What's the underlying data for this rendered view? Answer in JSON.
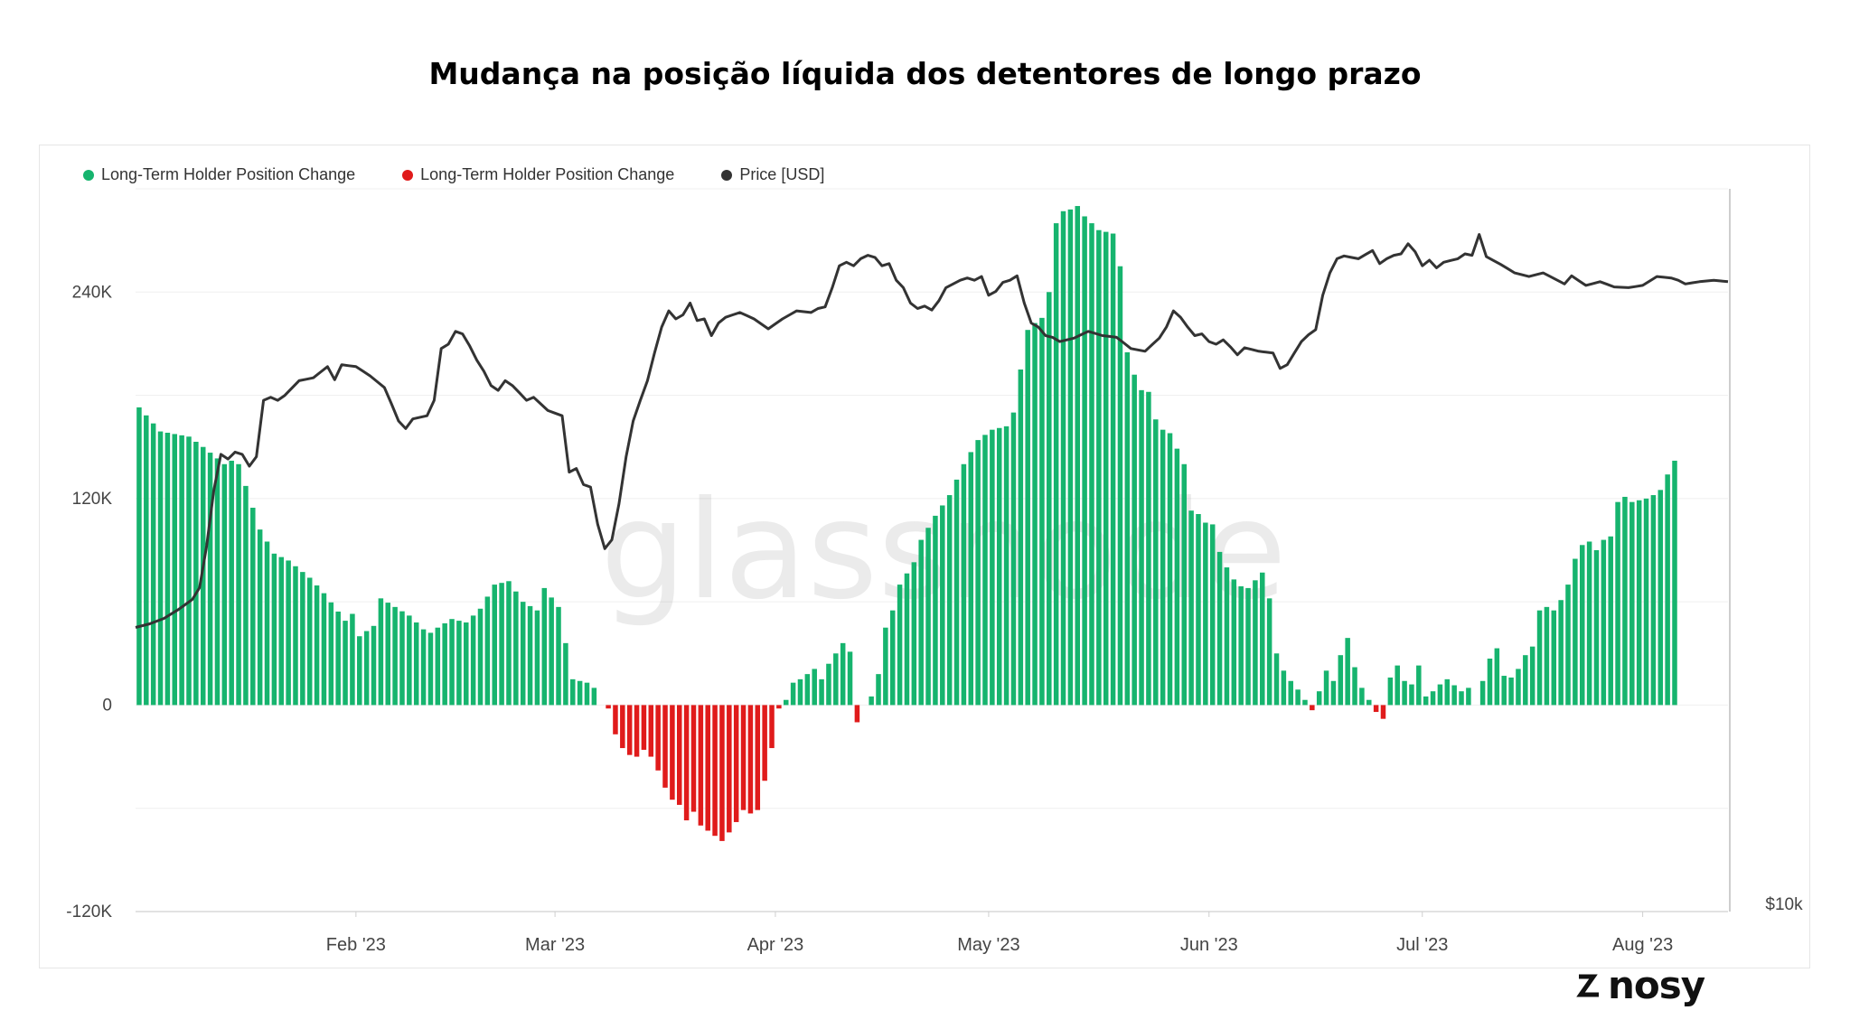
{
  "title": "Mudança na posição líquida dos detentores de longo prazo",
  "logo": {
    "text": "nosy",
    "icon": "nosy-logo-icon"
  },
  "watermark": "glassnode",
  "colors": {
    "positive": "#16b46e",
    "negative": "#e01b1b",
    "price": "#333333",
    "grid": "#efefef"
  },
  "chart_data": {
    "type": "bar",
    "title": "Mudança na posição líquida dos detentores de longo prazo",
    "legend": [
      {
        "label": "Long-Term Holder Position Change",
        "color": "#16b46e"
      },
      {
        "label": "Long-Term Holder Position Change",
        "color": "#e01b1b"
      },
      {
        "label": "Price [USD]",
        "color": "#333333"
      }
    ],
    "y_left": {
      "ticks": [
        240000,
        120000,
        0,
        -120000
      ],
      "labels": [
        "240K",
        "120K",
        "0",
        "-120K"
      ],
      "range": [
        -120000,
        300000
      ]
    },
    "y_right": {
      "labels": [
        "$10k"
      ],
      "scale": "log"
    },
    "x_axis": {
      "labels": [
        "Feb '23",
        "Mar '23",
        "Apr '23",
        "May '23",
        "Jun '23",
        "Jul '23",
        "Aug '23"
      ],
      "label_index": [
        31,
        59,
        90,
        120,
        151,
        181,
        212
      ],
      "start": "2023-01-01",
      "days": 224
    },
    "anchors": {
      "position_change": [
        [
          0,
          173000
        ],
        [
          3,
          159000
        ],
        [
          7,
          156000
        ],
        [
          9,
          150000
        ],
        [
          12,
          140000
        ],
        [
          13,
          142000
        ],
        [
          14,
          140000
        ],
        [
          17,
          102000
        ],
        [
          19,
          88000
        ],
        [
          21,
          84000
        ],
        [
          24,
          74000
        ],
        [
          26,
          65000
        ],
        [
          29,
          49000
        ],
        [
          30,
          53000
        ],
        [
          31,
          40000
        ],
        [
          33,
          46000
        ],
        [
          34,
          62000
        ],
        [
          36,
          57000
        ],
        [
          38,
          52000
        ],
        [
          40,
          44000
        ],
        [
          41,
          42000
        ],
        [
          42,
          45000
        ],
        [
          44,
          50000
        ],
        [
          46,
          48000
        ],
        [
          48,
          56000
        ],
        [
          50,
          70000
        ],
        [
          52,
          72000
        ],
        [
          54,
          60000
        ],
        [
          56,
          55000
        ],
        [
          57,
          68000
        ],
        [
          59,
          57000
        ],
        [
          60,
          36000
        ],
        [
          61,
          15000
        ],
        [
          63,
          13000
        ],
        [
          64,
          10000
        ],
        [
          65,
          0
        ],
        [
          66,
          -2000
        ],
        [
          67,
          -17000
        ],
        [
          68,
          -25000
        ],
        [
          69,
          -29000
        ],
        [
          70,
          -30000
        ],
        [
          71,
          -26000
        ],
        [
          72,
          -30000
        ],
        [
          73,
          -38000
        ],
        [
          74,
          -48000
        ],
        [
          75,
          -55000
        ],
        [
          76,
          -58000
        ],
        [
          77,
          -67000
        ],
        [
          78,
          -62000
        ],
        [
          79,
          -70000
        ],
        [
          80,
          -73000
        ],
        [
          81,
          -76000
        ],
        [
          82,
          -79000
        ],
        [
          83,
          -74000
        ],
        [
          84,
          -68000
        ],
        [
          85,
          -61000
        ],
        [
          86,
          -63000
        ],
        [
          87,
          -61000
        ],
        [
          88,
          -44000
        ],
        [
          89,
          -25000
        ],
        [
          90,
          -2000
        ],
        [
          91,
          3000
        ],
        [
          92,
          13000
        ],
        [
          93,
          15000
        ],
        [
          95,
          21000
        ],
        [
          96,
          15000
        ],
        [
          97,
          24000
        ],
        [
          99,
          36000
        ],
        [
          100,
          31000
        ],
        [
          101,
          -10000
        ],
        [
          102,
          0
        ],
        [
          103,
          5000
        ],
        [
          104,
          18000
        ],
        [
          105,
          45000
        ],
        [
          106,
          55000
        ],
        [
          107,
          70000
        ],
        [
          109,
          83000
        ],
        [
          110,
          96000
        ],
        [
          112,
          110000
        ],
        [
          114,
          122000
        ],
        [
          116,
          140000
        ],
        [
          118,
          154000
        ],
        [
          120,
          160000
        ],
        [
          122,
          162000
        ],
        [
          123,
          170000
        ],
        [
          124,
          195000
        ],
        [
          125,
          218000
        ],
        [
          126,
          222000
        ],
        [
          127,
          225000
        ],
        [
          128,
          240000
        ],
        [
          129,
          280000
        ],
        [
          130,
          287000
        ],
        [
          131,
          288000
        ],
        [
          132,
          290000
        ],
        [
          133,
          284000
        ],
        [
          134,
          280000
        ],
        [
          135,
          276000
        ],
        [
          136,
          275000
        ],
        [
          137,
          274000
        ],
        [
          138,
          255000
        ],
        [
          139,
          205000
        ],
        [
          140,
          192000
        ],
        [
          141,
          183000
        ],
        [
          142,
          182000
        ],
        [
          143,
          166000
        ],
        [
          144,
          160000
        ],
        [
          145,
          158000
        ],
        [
          147,
          140000
        ],
        [
          148,
          113000
        ],
        [
          149,
          111000
        ],
        [
          150,
          106000
        ],
        [
          151,
          105000
        ],
        [
          152,
          89000
        ],
        [
          153,
          80000
        ],
        [
          154,
          73000
        ],
        [
          155,
          69000
        ],
        [
          156,
          68000
        ],
        [
          158,
          77000
        ],
        [
          159,
          62000
        ],
        [
          160,
          30000
        ],
        [
          161,
          20000
        ],
        [
          162,
          14000
        ],
        [
          163,
          9000
        ],
        [
          164,
          3000
        ],
        [
          165,
          -3000
        ],
        [
          166,
          8000
        ],
        [
          167,
          20000
        ],
        [
          168,
          14000
        ],
        [
          169,
          29000
        ],
        [
          170,
          39000
        ],
        [
          171,
          22000
        ],
        [
          172,
          10000
        ],
        [
          173,
          3000
        ],
        [
          174,
          -4000
        ],
        [
          175,
          -8000
        ],
        [
          176,
          16000
        ],
        [
          177,
          23000
        ],
        [
          178,
          14000
        ],
        [
          179,
          12000
        ],
        [
          180,
          23000
        ],
        [
          181,
          5000
        ],
        [
          182,
          8000
        ],
        [
          183,
          12000
        ],
        [
          184,
          15000
        ],
        [
          186,
          8000
        ],
        [
          187,
          10000
        ],
        [
          188,
          0
        ],
        [
          189,
          14000
        ],
        [
          190,
          27000
        ],
        [
          191,
          33000
        ],
        [
          192,
          17000
        ],
        [
          193,
          16000
        ],
        [
          194,
          21000
        ],
        [
          195,
          29000
        ],
        [
          196,
          34000
        ],
        [
          197,
          55000
        ],
        [
          198,
          57000
        ],
        [
          199,
          55000
        ],
        [
          200,
          61000
        ],
        [
          201,
          70000
        ],
        [
          202,
          85000
        ],
        [
          203,
          93000
        ],
        [
          204,
          95000
        ],
        [
          205,
          90000
        ],
        [
          206,
          96000
        ],
        [
          207,
          98000
        ],
        [
          208,
          118000
        ],
        [
          209,
          121000
        ],
        [
          210,
          118000
        ],
        [
          212,
          120000
        ],
        [
          213,
          122000
        ],
        [
          214,
          125000
        ],
        [
          215,
          134000
        ],
        [
          216,
          142000
        ]
      ],
      "price": [
        [
          0,
          21000
        ],
        [
          2,
          21200
        ],
        [
          4,
          21500
        ],
        [
          6,
          22000
        ],
        [
          8,
          22600
        ],
        [
          9,
          23300
        ],
        [
          10,
          26000
        ],
        [
          11,
          30000
        ],
        [
          12,
          33000
        ],
        [
          13,
          32600
        ],
        [
          14,
          33200
        ],
        [
          15,
          33000
        ],
        [
          16,
          32000
        ],
        [
          17,
          32800
        ],
        [
          18,
          38000
        ],
        [
          19,
          38300
        ],
        [
          20,
          38000
        ],
        [
          21,
          38500
        ],
        [
          23,
          40000
        ],
        [
          25,
          40300
        ],
        [
          27,
          41500
        ],
        [
          28,
          40100
        ],
        [
          29,
          41700
        ],
        [
          31,
          41500
        ],
        [
          33,
          40500
        ],
        [
          35,
          39300
        ],
        [
          37,
          36000
        ],
        [
          38,
          35300
        ],
        [
          39,
          36200
        ],
        [
          41,
          36500
        ],
        [
          42,
          38000
        ],
        [
          43,
          43500
        ],
        [
          44,
          44000
        ],
        [
          45,
          45500
        ],
        [
          46,
          45200
        ],
        [
          47,
          43800
        ],
        [
          48,
          42200
        ],
        [
          49,
          41000
        ],
        [
          50,
          39500
        ],
        [
          51,
          39000
        ],
        [
          52,
          40000
        ],
        [
          53,
          39500
        ],
        [
          55,
          38000
        ],
        [
          56,
          38300
        ],
        [
          58,
          37000
        ],
        [
          60,
          36500
        ],
        [
          61,
          31500
        ],
        [
          62,
          31800
        ],
        [
          63,
          30500
        ],
        [
          64,
          30300
        ],
        [
          65,
          27500
        ],
        [
          66,
          25800
        ],
        [
          67,
          26400
        ],
        [
          68,
          29000
        ],
        [
          69,
          32800
        ],
        [
          70,
          36000
        ],
        [
          71,
          38000
        ],
        [
          72,
          40000
        ],
        [
          73,
          43000
        ],
        [
          74,
          46000
        ],
        [
          75,
          48000
        ],
        [
          76,
          47000
        ],
        [
          77,
          47500
        ],
        [
          78,
          49000
        ],
        [
          79,
          46800
        ],
        [
          80,
          47000
        ],
        [
          81,
          45000
        ],
        [
          82,
          46500
        ],
        [
          83,
          47200
        ],
        [
          85,
          47800
        ],
        [
          87,
          47000
        ],
        [
          89,
          45800
        ],
        [
          91,
          47000
        ],
        [
          93,
          48000
        ],
        [
          95,
          47800
        ],
        [
          96,
          48300
        ],
        [
          97,
          48500
        ],
        [
          98,
          51000
        ],
        [
          99,
          54000
        ],
        [
          100,
          54500
        ],
        [
          101,
          54000
        ],
        [
          102,
          55000
        ],
        [
          103,
          55500
        ],
        [
          104,
          55200
        ],
        [
          105,
          54000
        ],
        [
          106,
          54300
        ],
        [
          107,
          52000
        ],
        [
          108,
          51000
        ],
        [
          109,
          49000
        ],
        [
          110,
          48300
        ],
        [
          111,
          48600
        ],
        [
          112,
          48100
        ],
        [
          113,
          49300
        ],
        [
          114,
          51000
        ],
        [
          115,
          51500
        ],
        [
          116,
          52000
        ],
        [
          117,
          52300
        ],
        [
          118,
          52000
        ],
        [
          119,
          52500
        ],
        [
          120,
          50000
        ],
        [
          121,
          50500
        ],
        [
          122,
          51700
        ],
        [
          123,
          52000
        ],
        [
          124,
          52600
        ],
        [
          125,
          49000
        ],
        [
          126,
          46500
        ],
        [
          127,
          46000
        ],
        [
          128,
          45000
        ],
        [
          129,
          44800
        ],
        [
          130,
          44300
        ],
        [
          132,
          44700
        ],
        [
          134,
          45500
        ],
        [
          136,
          45000
        ],
        [
          138,
          44800
        ],
        [
          140,
          43500
        ],
        [
          142,
          43200
        ],
        [
          144,
          44700
        ],
        [
          145,
          46000
        ],
        [
          146,
          48000
        ],
        [
          147,
          47200
        ],
        [
          148,
          46000
        ],
        [
          149,
          45000
        ],
        [
          150,
          45200
        ],
        [
          151,
          44300
        ],
        [
          152,
          44000
        ],
        [
          153,
          44500
        ],
        [
          154,
          43700
        ],
        [
          155,
          42800
        ],
        [
          156,
          43600
        ],
        [
          158,
          43200
        ],
        [
          160,
          43000
        ],
        [
          161,
          41300
        ],
        [
          162,
          41700
        ],
        [
          163,
          43000
        ],
        [
          164,
          44300
        ],
        [
          165,
          45100
        ],
        [
          166,
          45700
        ],
        [
          167,
          50000
        ],
        [
          168,
          53000
        ],
        [
          169,
          55000
        ],
        [
          170,
          55400
        ],
        [
          172,
          55000
        ],
        [
          174,
          56200
        ],
        [
          175,
          54300
        ],
        [
          176,
          55000
        ],
        [
          177,
          55500
        ],
        [
          178,
          55700
        ],
        [
          179,
          57200
        ],
        [
          180,
          56000
        ],
        [
          181,
          54000
        ],
        [
          182,
          54800
        ],
        [
          183,
          53700
        ],
        [
          184,
          54500
        ],
        [
          186,
          55000
        ],
        [
          187,
          55700
        ],
        [
          188,
          55500
        ],
        [
          189,
          58600
        ],
        [
          190,
          55300
        ],
        [
          192,
          54200
        ],
        [
          194,
          53000
        ],
        [
          196,
          52500
        ],
        [
          198,
          53000
        ],
        [
          200,
          52000
        ],
        [
          201,
          51500
        ],
        [
          202,
          52600
        ],
        [
          204,
          51300
        ],
        [
          206,
          51800
        ],
        [
          208,
          51100
        ],
        [
          210,
          51000
        ],
        [
          212,
          51300
        ],
        [
          214,
          52500
        ],
        [
          216,
          52300
        ],
        [
          217,
          52000
        ],
        [
          218,
          51500
        ],
        [
          220,
          51800
        ],
        [
          222,
          52000
        ],
        [
          224,
          51800
        ]
      ]
    }
  }
}
